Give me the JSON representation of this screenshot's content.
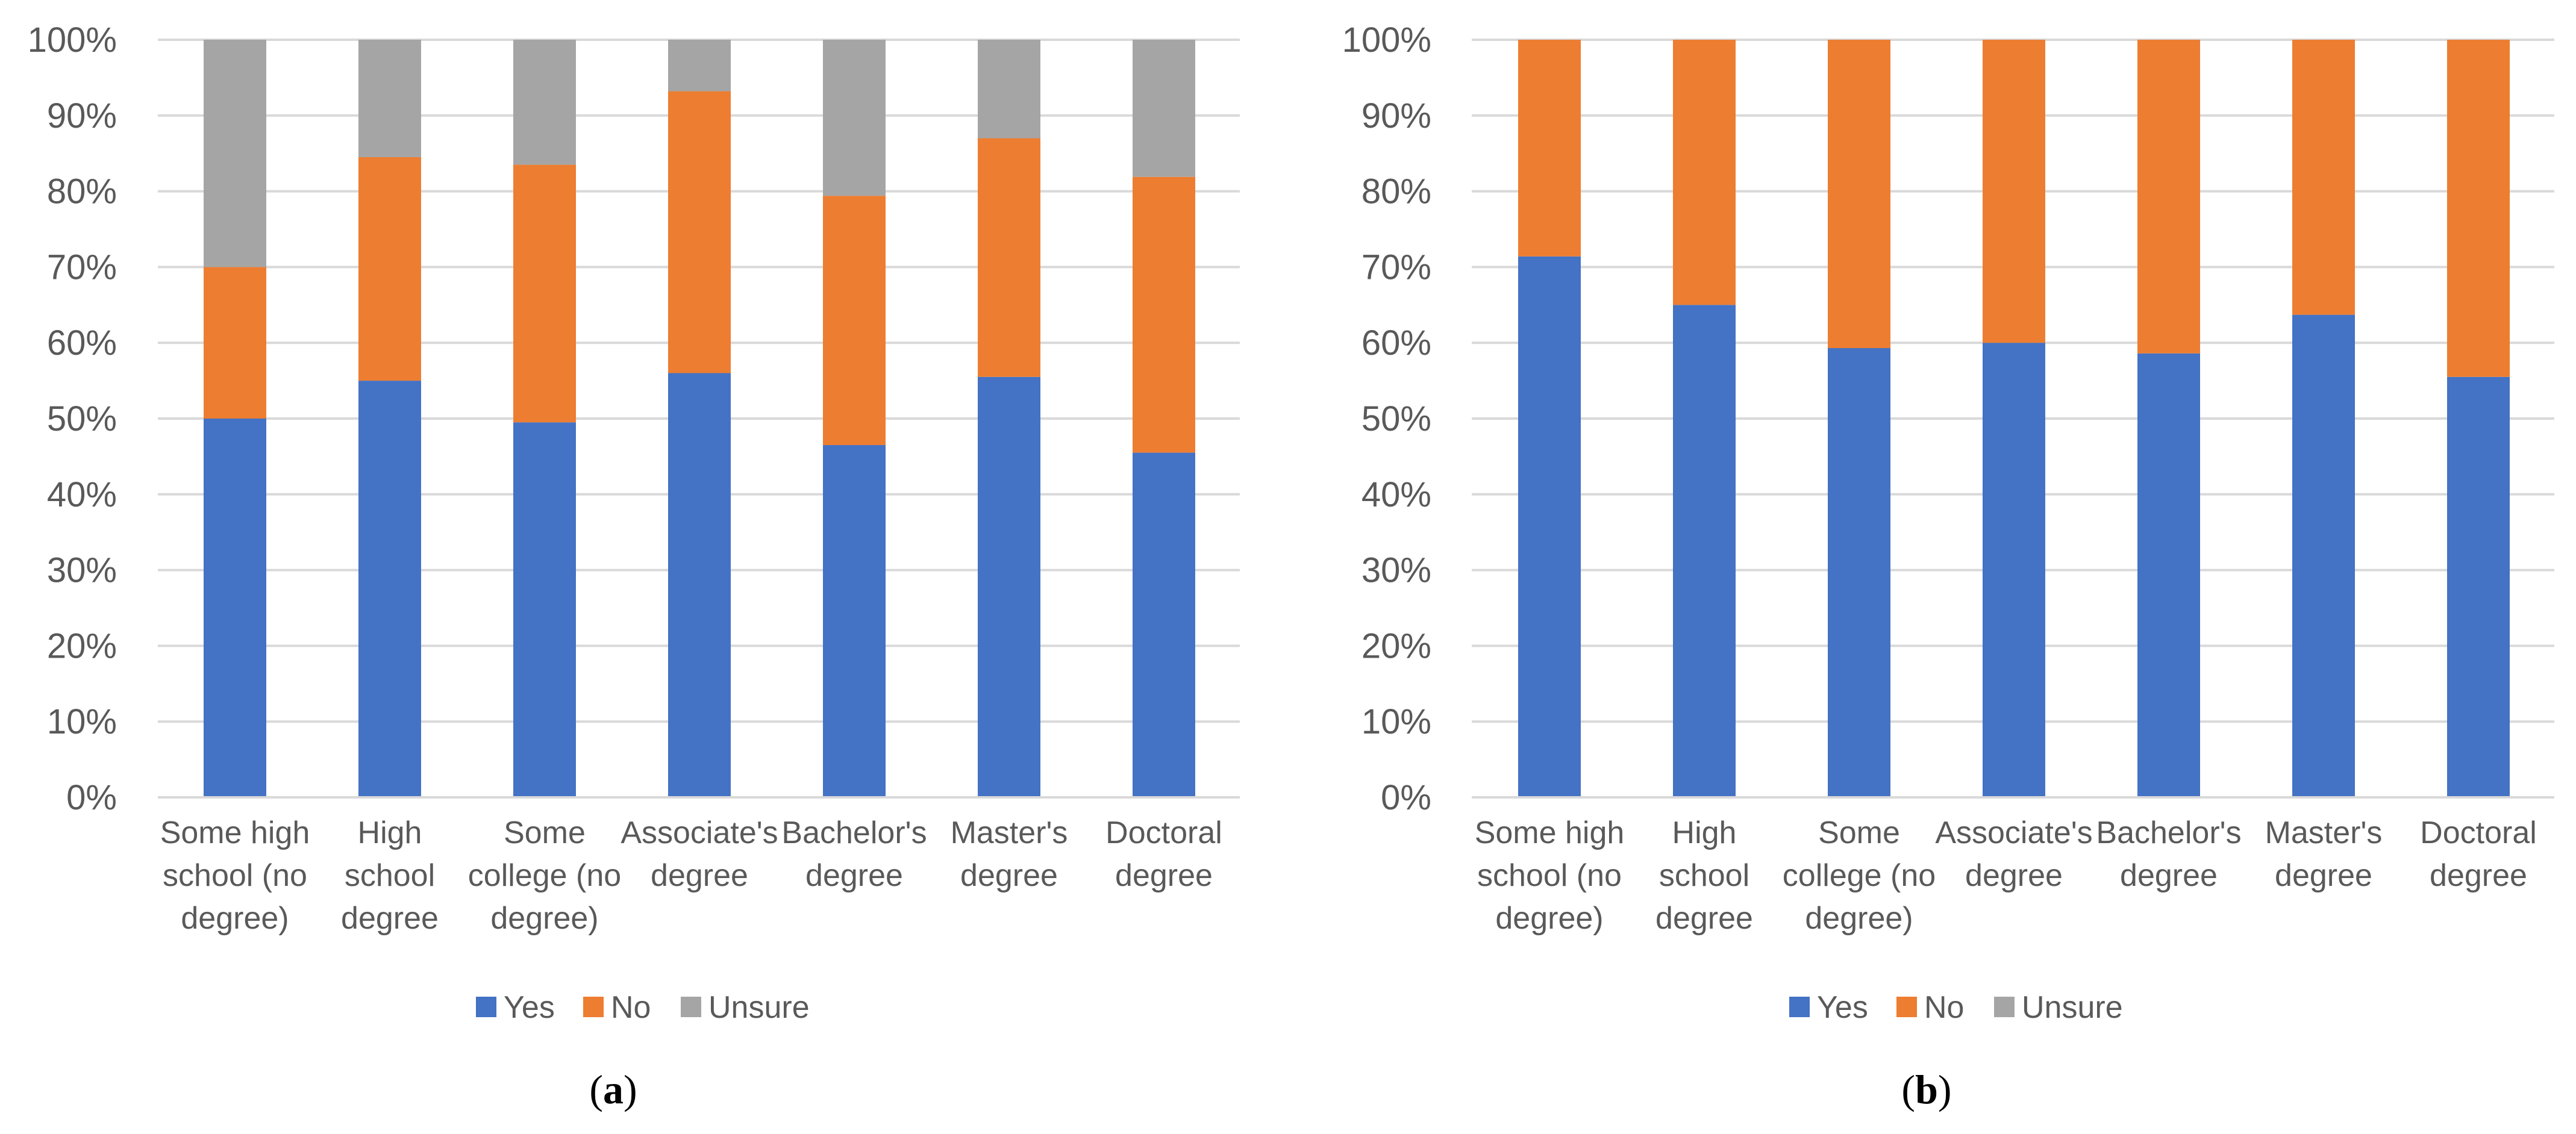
{
  "colors": {
    "Yes": "#4472C4",
    "No": "#ED7D31",
    "Unsure": "#A5A5A5",
    "grid": "#D9D9D9",
    "text": "#595959"
  },
  "chart_data": [
    {
      "type": "bar",
      "stacked": true,
      "panel_label": "a",
      "title": "",
      "xlabel": "",
      "ylabel": "",
      "ylim": [
        0,
        1
      ],
      "yticks": [
        "0%",
        "10%",
        "20%",
        "30%",
        "40%",
        "50%",
        "60%",
        "70%",
        "80%",
        "90%",
        "100%"
      ],
      "categories": [
        [
          "Some high",
          "school (no",
          "degree)"
        ],
        [
          "High",
          "school",
          "degree"
        ],
        [
          "Some",
          "college (no",
          "degree)"
        ],
        [
          "Associate's",
          "degree"
        ],
        [
          "Bachelor's",
          "degree"
        ],
        [
          "Master's",
          "degree"
        ],
        [
          "Doctoral",
          "degree"
        ]
      ],
      "series": [
        {
          "name": "Yes",
          "values": [
            0.5,
            0.55,
            0.495,
            0.56,
            0.465,
            0.555,
            0.455
          ]
        },
        {
          "name": "No",
          "values": [
            0.2,
            0.295,
            0.34,
            0.372,
            0.329,
            0.315,
            0.364
          ]
        },
        {
          "name": "Unsure",
          "values": [
            0.3,
            0.155,
            0.165,
            0.068,
            0.206,
            0.13,
            0.181
          ]
        }
      ],
      "legend": [
        "Yes",
        "No",
        "Unsure"
      ],
      "legend_position": "bottom"
    },
    {
      "type": "bar",
      "stacked": true,
      "panel_label": "b",
      "title": "",
      "xlabel": "",
      "ylabel": "",
      "ylim": [
        0,
        1
      ],
      "yticks": [
        "0%",
        "10%",
        "20%",
        "30%",
        "40%",
        "50%",
        "60%",
        "70%",
        "80%",
        "90%",
        "100%"
      ],
      "categories": [
        [
          "Some high",
          "school (no",
          "degree)"
        ],
        [
          "High",
          "school",
          "degree"
        ],
        [
          "Some",
          "college (no",
          "degree)"
        ],
        [
          "Associate's",
          "degree"
        ],
        [
          "Bachelor's",
          "degree"
        ],
        [
          "Master's",
          "degree"
        ],
        [
          "Doctoral",
          "degree"
        ]
      ],
      "series": [
        {
          "name": "Yes",
          "values": [
            0.714,
            0.65,
            0.593,
            0.6,
            0.586,
            0.637,
            0.555
          ]
        },
        {
          "name": "No",
          "values": [
            0.286,
            0.35,
            0.407,
            0.4,
            0.414,
            0.363,
            0.445
          ]
        },
        {
          "name": "Unsure",
          "values": [
            0,
            0,
            0,
            0,
            0,
            0,
            0
          ]
        }
      ],
      "legend": [
        "Yes",
        "No",
        "Unsure"
      ],
      "legend_position": "bottom"
    }
  ]
}
